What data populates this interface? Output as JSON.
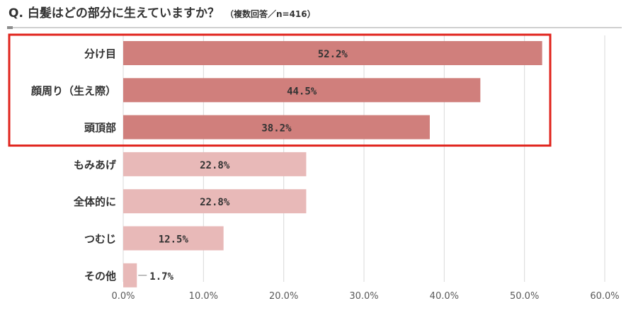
{
  "question": "Q. 白髪はどの部分に生えていますか？",
  "note": "（複数回答／n=416）",
  "chart_data": {
    "type": "bar",
    "orientation": "horizontal",
    "categories": [
      "分け目",
      "顔周り（生え際）",
      "頭頂部",
      "もみあげ",
      "全体的に",
      "つむじ",
      "その他"
    ],
    "values": [
      52.2,
      44.5,
      38.2,
      22.8,
      22.8,
      12.5,
      1.7
    ],
    "data_labels": [
      "52.2%",
      "44.5%",
      "38.2%",
      "22.8%",
      "22.8%",
      "12.5%",
      "1.7%"
    ],
    "xlim": [
      0,
      60
    ],
    "x_ticks": [
      "0.0%",
      "10.0%",
      "20.0%",
      "30.0%",
      "40.0%",
      "50.0%",
      "60.0%"
    ],
    "grid": true,
    "highlight": {
      "indices": [
        0,
        1,
        2
      ],
      "outline_color": "#e0231c"
    },
    "colors": {
      "highlight_bar": "#d07f7c",
      "normal_bar": "#e8b9b8",
      "grid": "#d9d9d9",
      "text": "#333333"
    }
  }
}
